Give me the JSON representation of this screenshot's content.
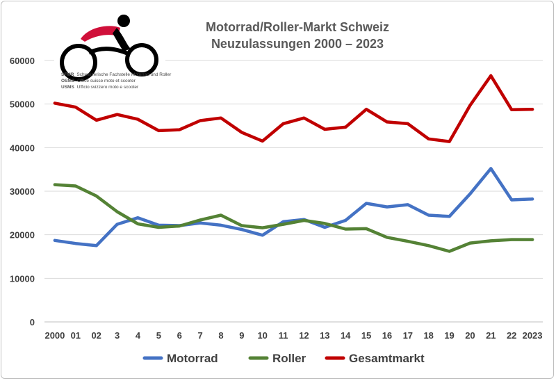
{
  "logo": {
    "lines": [
      {
        "code": "SFMR",
        "text": "Schweizerische Fachstelle Motorrad und Roller"
      },
      {
        "code": "OSMS",
        "text": "Office suisse moto et scooter"
      },
      {
        "code": "USMS",
        "text": "Ufficio svizzero moto e scooter"
      }
    ]
  },
  "chart_data": {
    "type": "line",
    "title": "Motorrad/Roller-Markt Schweiz",
    "subtitle": "Neuzulassungen 2000 – 2023",
    "categories": [
      "2000",
      "01",
      "02",
      "3",
      "4",
      "5",
      "6",
      "7",
      "8",
      "9",
      "10",
      "11",
      "12",
      "13",
      "14",
      "15",
      "16",
      "17",
      "18",
      "19",
      "20",
      "21",
      "22",
      "2023"
    ],
    "ylim": [
      0,
      60000
    ],
    "yticks": [
      0,
      10000,
      20000,
      30000,
      40000,
      50000,
      60000
    ],
    "grid": true,
    "legend_position": "bottom",
    "series": [
      {
        "name": "Motorrad",
        "color": "#4472c4",
        "values": [
          18700,
          18000,
          17500,
          22400,
          23900,
          22200,
          22100,
          22700,
          22200,
          21200,
          19900,
          23000,
          23500,
          21700,
          23300,
          27200,
          26400,
          26900,
          24500,
          24200,
          29400,
          35200,
          28000,
          28200
        ]
      },
      {
        "name": "Roller",
        "color": "#548235",
        "values": [
          31500,
          31200,
          28900,
          25300,
          22500,
          21700,
          22000,
          23400,
          24500,
          22100,
          21600,
          22400,
          23300,
          22600,
          21300,
          21400,
          19400,
          18500,
          17500,
          16200,
          18100,
          18600,
          18900,
          18900
        ]
      },
      {
        "name": "Gesamtmarkt",
        "color": "#c00000",
        "values": [
          50200,
          49300,
          46300,
          47600,
          46500,
          43900,
          44100,
          46200,
          46800,
          43500,
          41500,
          45500,
          46800,
          44200,
          44700,
          48800,
          45900,
          45500,
          42000,
          41400,
          49700,
          56500,
          48700,
          48800
        ]
      }
    ]
  }
}
